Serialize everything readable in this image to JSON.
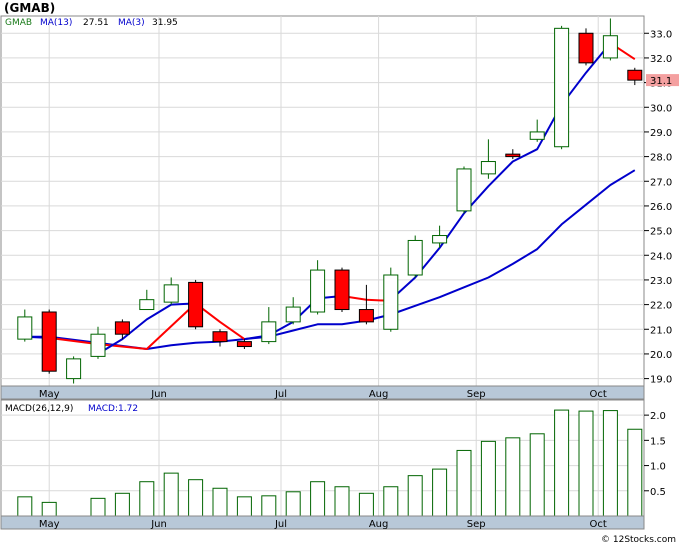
{
  "chart_data": [
    {
      "type": "candlestick",
      "title": "(GMAB)",
      "legend": {
        "symbol": "GMAB",
        "ma_long_label": "MA(13)",
        "ma_long_value": "27.51",
        "ma_short_label": "MA(3)",
        "ma_short_value": "31.95"
      },
      "colors": {
        "up_fill": "#ffffff",
        "up_edge": "#006400",
        "down_fill": "#ff0000",
        "down_edge": "#000000",
        "ma_long": "#0000cc",
        "ma_short": "#ff0000",
        "price_tag_bg": "#f4a0a0"
      },
      "ylim": [
        18.7,
        33.7
      ],
      "yticks": [
        "19.0",
        "20.0",
        "21.0",
        "22.0",
        "23.0",
        "24.0",
        "25.0",
        "26.0",
        "27.0",
        "28.0",
        "29.0",
        "30.0",
        "31.0",
        "32.0",
        "33.0"
      ],
      "months": [
        "May",
        "Jun",
        "Jul",
        "Aug",
        "Sep",
        "Oct"
      ],
      "last_price": "31.1",
      "candles": [
        {
          "x": 0.5,
          "o": 20.6,
          "c": 21.5,
          "h": 21.8,
          "l": 20.5
        },
        {
          "x": 1.5,
          "o": 21.7,
          "c": 19.3,
          "h": 21.8,
          "l": 19.2
        },
        {
          "x": 2.5,
          "o": 19.0,
          "c": 19.8,
          "h": 19.9,
          "l": 18.8
        },
        {
          "x": 3.5,
          "o": 19.9,
          "c": 20.8,
          "h": 21.1,
          "l": 19.8
        },
        {
          "x": 4.5,
          "o": 21.3,
          "c": 20.8,
          "h": 21.4,
          "l": 20.6
        },
        {
          "x": 5.5,
          "o": 21.8,
          "c": 22.2,
          "h": 22.6,
          "l": 21.8
        },
        {
          "x": 6.5,
          "o": 22.1,
          "c": 22.8,
          "h": 23.1,
          "l": 22.0
        },
        {
          "x": 7.5,
          "o": 22.9,
          "c": 21.1,
          "h": 23.0,
          "l": 21.0
        },
        {
          "x": 8.5,
          "o": 20.9,
          "c": 20.5,
          "h": 21.0,
          "l": 20.3
        },
        {
          "x": 9.5,
          "o": 20.5,
          "c": 20.3,
          "h": 20.6,
          "l": 20.2
        },
        {
          "x": 10.5,
          "o": 20.5,
          "c": 21.3,
          "h": 21.9,
          "l": 20.4
        },
        {
          "x": 11.5,
          "o": 21.3,
          "c": 21.9,
          "h": 22.3,
          "l": 21.2
        },
        {
          "x": 12.5,
          "o": 21.7,
          "c": 23.4,
          "h": 23.8,
          "l": 21.6
        },
        {
          "x": 13.5,
          "o": 23.4,
          "c": 21.8,
          "h": 23.5,
          "l": 21.7
        },
        {
          "x": 14.5,
          "o": 21.8,
          "c": 21.3,
          "h": 22.8,
          "l": 21.2
        },
        {
          "x": 15.5,
          "o": 21.0,
          "c": 23.2,
          "h": 23.5,
          "l": 20.9
        },
        {
          "x": 16.5,
          "o": 23.2,
          "c": 24.6,
          "h": 24.8,
          "l": 23.1
        },
        {
          "x": 17.5,
          "o": 24.5,
          "c": 24.8,
          "h": 25.2,
          "l": 24.3
        },
        {
          "x": 18.5,
          "o": 25.8,
          "c": 27.5,
          "h": 27.6,
          "l": 25.7
        },
        {
          "x": 19.5,
          "o": 27.3,
          "c": 27.8,
          "h": 28.7,
          "l": 27.1
        },
        {
          "x": 20.5,
          "o": 28.1,
          "c": 28.0,
          "h": 28.3,
          "l": 27.9
        },
        {
          "x": 21.5,
          "o": 28.7,
          "c": 29.0,
          "h": 29.5,
          "l": 28.6
        },
        {
          "x": 22.5,
          "o": 28.4,
          "c": 33.2,
          "h": 33.3,
          "l": 28.3
        },
        {
          "x": 23.5,
          "o": 33.0,
          "c": 31.8,
          "h": 33.2,
          "l": 31.7
        },
        {
          "x": 24.5,
          "o": 32.0,
          "c": 32.9,
          "h": 33.6,
          "l": 31.9
        },
        {
          "x": 25.5,
          "o": 31.5,
          "c": 31.1,
          "h": 31.6,
          "l": 30.9
        }
      ],
      "ma13": [
        {
          "x": 0.5,
          "y": 20.7
        },
        {
          "x": 1.5,
          "y": 20.7
        },
        {
          "x": 5.5,
          "y": 20.2
        },
        {
          "x": 6.5,
          "y": 20.35
        },
        {
          "x": 7.5,
          "y": 20.45
        },
        {
          "x": 8.5,
          "y": 20.5
        },
        {
          "x": 9.5,
          "y": 20.6
        },
        {
          "x": 10.5,
          "y": 20.7
        },
        {
          "x": 11.5,
          "y": 20.95
        },
        {
          "x": 12.5,
          "y": 21.2
        },
        {
          "x": 13.5,
          "y": 21.2
        },
        {
          "x": 14.5,
          "y": 21.35
        },
        {
          "x": 15.5,
          "y": 21.6
        },
        {
          "x": 16.5,
          "y": 21.95
        },
        {
          "x": 17.5,
          "y": 22.3
        },
        {
          "x": 18.5,
          "y": 22.7
        },
        {
          "x": 19.5,
          "y": 23.1
        },
        {
          "x": 20.5,
          "y": 23.65
        },
        {
          "x": 21.5,
          "y": 24.25
        },
        {
          "x": 22.5,
          "y": 25.25
        },
        {
          "x": 23.5,
          "y": 26.05
        },
        {
          "x": 24.5,
          "y": 26.85
        },
        {
          "x": 25.5,
          "y": 27.45
        }
      ],
      "ma3_blue": [
        {
          "x": 0.5,
          "y": 20.7
        },
        {
          "x": 1.5,
          "y": 20.65
        },
        {
          "x": 3.5,
          "y": 20.0
        },
        {
          "x": 4.5,
          "y": 20.6
        },
        {
          "x": 5.5,
          "y": 21.4
        },
        {
          "x": 6.5,
          "y": 22.0
        },
        {
          "x": 7.5,
          "y": 22.05
        },
        {
          "x": 9.5,
          "y": 20.6
        },
        {
          "x": 10.5,
          "y": 20.75
        },
        {
          "x": 11.5,
          "y": 21.3
        },
        {
          "x": 12.5,
          "y": 22.25
        },
        {
          "x": 13.5,
          "y": 22.35
        },
        {
          "x": 15.5,
          "y": 22.2
        },
        {
          "x": 16.5,
          "y": 23.1
        },
        {
          "x": 17.5,
          "y": 24.3
        },
        {
          "x": 18.5,
          "y": 25.7
        },
        {
          "x": 19.5,
          "y": 26.8
        },
        {
          "x": 20.5,
          "y": 27.8
        },
        {
          "x": 21.5,
          "y": 28.3
        },
        {
          "x": 22.5,
          "y": 30.1
        },
        {
          "x": 23.5,
          "y": 31.4
        },
        {
          "x": 24.5,
          "y": 32.6
        }
      ],
      "ma3_red": [
        {
          "x": 1.5,
          "y": 20.65
        },
        {
          "x": 3.5,
          "y": 20.4
        },
        {
          "x": 5.5,
          "y": 20.2
        },
        {
          "x": 7.5,
          "y": 22.05
        },
        {
          "x": 8.5,
          "y": 21.3
        },
        {
          "x": 9.5,
          "y": 20.6
        },
        {
          "x": 13.5,
          "y": 22.35
        },
        {
          "x": 14.5,
          "y": 22.2
        },
        {
          "x": 15.5,
          "y": 22.15
        },
        {
          "x": 24.5,
          "y": 32.6
        },
        {
          "x": 25.5,
          "y": 31.95
        }
      ]
    },
    {
      "type": "bar",
      "legend": {
        "macd_label": "MACD(26,12,9)",
        "macd_value_label": "MACD:1.72"
      },
      "colors": {
        "edge": "#006400",
        "fill": "#ffffff"
      },
      "ylim": [
        0.0,
        2.3
      ],
      "yticks": [
        "0.5",
        "1.0",
        "1.5",
        "2.0"
      ],
      "months": [
        "May",
        "Jun",
        "Jul",
        "Aug",
        "Sep",
        "Oct"
      ],
      "bars": [
        {
          "x": 0.5,
          "v": 0.38
        },
        {
          "x": 1.5,
          "v": 0.27
        },
        {
          "x": 3.5,
          "v": 0.35
        },
        {
          "x": 4.5,
          "v": 0.45
        },
        {
          "x": 5.5,
          "v": 0.68
        },
        {
          "x": 6.5,
          "v": 0.85
        },
        {
          "x": 7.5,
          "v": 0.72
        },
        {
          "x": 8.5,
          "v": 0.55
        },
        {
          "x": 9.5,
          "v": 0.38
        },
        {
          "x": 10.5,
          "v": 0.4
        },
        {
          "x": 11.5,
          "v": 0.48
        },
        {
          "x": 12.5,
          "v": 0.68
        },
        {
          "x": 13.5,
          "v": 0.58
        },
        {
          "x": 14.5,
          "v": 0.45
        },
        {
          "x": 15.5,
          "v": 0.58
        },
        {
          "x": 16.5,
          "v": 0.8
        },
        {
          "x": 17.5,
          "v": 0.93
        },
        {
          "x": 18.5,
          "v": 1.3
        },
        {
          "x": 19.5,
          "v": 1.48
        },
        {
          "x": 20.5,
          "v": 1.55
        },
        {
          "x": 21.5,
          "v": 1.63
        },
        {
          "x": 22.5,
          "v": 2.1
        },
        {
          "x": 23.5,
          "v": 2.08
        },
        {
          "x": 24.5,
          "v": 2.09
        },
        {
          "x": 25.5,
          "v": 1.72
        }
      ]
    }
  ],
  "watermark": "© 12Stocks.com"
}
